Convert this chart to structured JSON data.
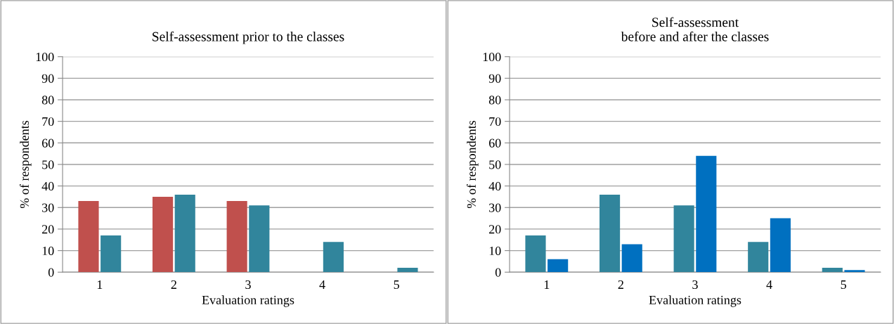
{
  "chart_data": [
    {
      "type": "bar",
      "title": "Self-assessment prior to the classes",
      "xlabel": "Evaluation ratings",
      "ylabel": "% of respondents",
      "categories": [
        "1",
        "2",
        "3",
        "4",
        "5"
      ],
      "series": [
        {
          "color": "#c0504d",
          "values": [
            33,
            35,
            33,
            null,
            null
          ]
        },
        {
          "color": "#31859c",
          "values": [
            17,
            36,
            31,
            14,
            2
          ]
        }
      ],
      "ylim": [
        0,
        100
      ],
      "yticks": [
        0,
        10,
        20,
        30,
        40,
        50,
        60,
        70,
        80,
        90,
        100
      ],
      "grid": "y",
      "legend": false
    },
    {
      "type": "bar",
      "title": "Self-assessment\nbefore and after the classes",
      "xlabel": "Evaluation ratings",
      "ylabel": "% of respondents",
      "categories": [
        "1",
        "2",
        "3",
        "4",
        "5"
      ],
      "series": [
        {
          "color": "#31859c",
          "values": [
            17,
            36,
            31,
            14,
            2
          ]
        },
        {
          "color": "#0070c0",
          "values": [
            6,
            13,
            54,
            25,
            1
          ]
        }
      ],
      "ylim": [
        0,
        100
      ],
      "yticks": [
        0,
        10,
        20,
        30,
        40,
        50,
        60,
        70,
        80,
        90,
        100
      ],
      "grid": "y",
      "legend": false
    }
  ]
}
